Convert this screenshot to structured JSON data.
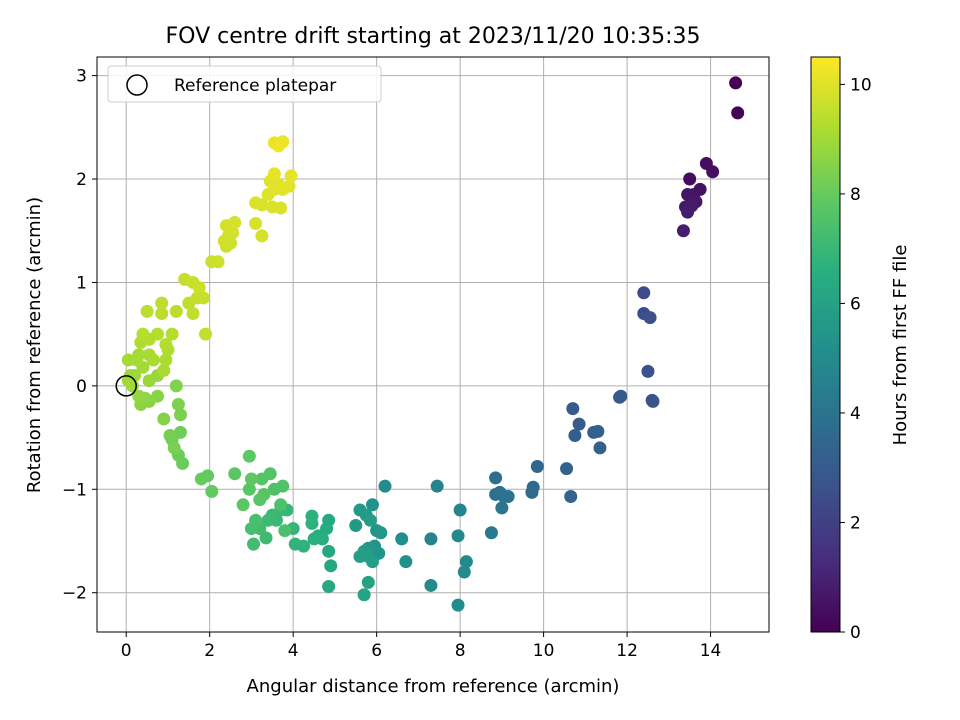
{
  "chart_data": {
    "type": "scatter",
    "title": "FOV centre drift starting at 2023/11/20 10:35:35",
    "xlabel": "Angular distance from reference (arcmin)",
    "ylabel": "Rotation from reference (arcmin)",
    "xlim": [
      -0.7,
      15.4
    ],
    "ylim": [
      -2.38,
      3.18
    ],
    "xticks": [
      0,
      2,
      4,
      6,
      8,
      10,
      12,
      14
    ],
    "yticks": [
      -2,
      -1,
      0,
      1,
      2,
      3
    ],
    "grid": true,
    "colormap": "viridis",
    "colorbar": {
      "label": "Hours from first FF file",
      "range": [
        0,
        10.5
      ],
      "ticks": [
        0,
        2,
        4,
        6,
        8,
        10
      ]
    },
    "legend": {
      "placement": "upper-left",
      "entries": [
        {
          "label": "Reference platepar",
          "marker": "open-circle"
        }
      ]
    },
    "reference_point": {
      "x": 0,
      "y": 0
    },
    "points": [
      [
        14.6,
        2.93,
        0.05
      ],
      [
        14.65,
        2.64,
        0.1
      ],
      [
        13.5,
        2.0,
        0.3
      ],
      [
        13.9,
        2.15,
        0.4
      ],
      [
        14.05,
        2.07,
        0.45
      ],
      [
        13.75,
        1.9,
        0.5
      ],
      [
        13.6,
        1.85,
        0.55
      ],
      [
        13.45,
        1.85,
        0.6
      ],
      [
        13.65,
        1.78,
        0.65
      ],
      [
        13.4,
        1.73,
        0.7
      ],
      [
        13.55,
        1.74,
        0.75
      ],
      [
        13.45,
        1.68,
        0.8
      ],
      [
        13.35,
        1.5,
        0.85
      ],
      [
        12.4,
        0.9,
        2.4
      ],
      [
        12.4,
        0.7,
        2.5
      ],
      [
        12.55,
        0.66,
        2.55
      ],
      [
        12.5,
        0.14,
        2.6
      ],
      [
        12.6,
        -0.14,
        2.7
      ],
      [
        12.62,
        -0.15,
        2.75
      ],
      [
        11.85,
        -0.1,
        2.9
      ],
      [
        11.82,
        -0.11,
        2.95
      ],
      [
        10.7,
        -0.22,
        3.0
      ],
      [
        10.85,
        -0.37,
        3.05
      ],
      [
        10.75,
        -0.48,
        3.1
      ],
      [
        11.2,
        -0.45,
        3.15
      ],
      [
        11.3,
        -0.44,
        3.2
      ],
      [
        11.35,
        -0.6,
        3.25
      ],
      [
        10.55,
        -0.8,
        3.3
      ],
      [
        10.65,
        -1.07,
        3.35
      ],
      [
        9.85,
        -0.78,
        3.5
      ],
      [
        9.75,
        -0.98,
        3.55
      ],
      [
        9.72,
        -1.03,
        3.6
      ],
      [
        8.85,
        -0.89,
        3.8
      ],
      [
        8.85,
        -1.05,
        3.85
      ],
      [
        8.95,
        -1.03,
        3.9
      ],
      [
        9.05,
        -1.07,
        3.95
      ],
      [
        9.15,
        -1.07,
        4.0
      ],
      [
        9.0,
        -1.18,
        4.05
      ],
      [
        8.75,
        -1.42,
        4.2
      ],
      [
        7.45,
        -0.97,
        4.6
      ],
      [
        7.3,
        -1.48,
        4.7
      ],
      [
        8.0,
        -1.2,
        4.8
      ],
      [
        7.95,
        -1.45,
        4.85
      ],
      [
        8.15,
        -1.7,
        4.9
      ],
      [
        8.1,
        -1.8,
        4.95
      ],
      [
        7.3,
        -1.93,
        5.0
      ],
      [
        7.95,
        -2.12,
        5.05
      ],
      [
        6.2,
        -0.97,
        5.1
      ],
      [
        6.6,
        -1.48,
        5.2
      ],
      [
        6.7,
        -1.7,
        5.25
      ],
      [
        5.9,
        -1.15,
        5.3
      ],
      [
        6.0,
        -1.4,
        5.35
      ],
      [
        5.95,
        -1.55,
        5.4
      ],
      [
        6.05,
        -1.62,
        5.45
      ],
      [
        6.1,
        -1.42,
        5.5
      ],
      [
        5.8,
        -1.57,
        5.55
      ],
      [
        5.6,
        -1.2,
        5.6
      ],
      [
        5.5,
        -1.35,
        5.65
      ],
      [
        5.75,
        -1.25,
        5.7
      ],
      [
        5.85,
        -1.3,
        5.75
      ],
      [
        5.8,
        -1.65,
        5.8
      ],
      [
        5.9,
        -1.7,
        5.85
      ],
      [
        5.7,
        -1.6,
        5.9
      ],
      [
        5.6,
        -1.65,
        5.95
      ],
      [
        5.8,
        -1.9,
        6.0
      ],
      [
        5.7,
        -2.02,
        6.05
      ],
      [
        4.85,
        -1.6,
        6.2
      ],
      [
        4.9,
        -1.74,
        6.25
      ],
      [
        4.85,
        -1.94,
        6.3
      ],
      [
        4.85,
        -1.3,
        6.4
      ],
      [
        4.8,
        -1.38,
        6.45
      ],
      [
        4.6,
        -1.45,
        6.5
      ],
      [
        4.7,
        -1.48,
        6.55
      ],
      [
        4.5,
        -1.48,
        6.6
      ],
      [
        4.45,
        -1.26,
        6.65
      ],
      [
        4.45,
        -1.33,
        6.7
      ],
      [
        4.25,
        -1.55,
        6.75
      ],
      [
        4.05,
        -1.53,
        6.8
      ],
      [
        4.0,
        -1.38,
        6.85
      ],
      [
        3.85,
        -1.2,
        6.9
      ],
      [
        3.7,
        -1.2,
        6.95
      ],
      [
        3.6,
        -1.3,
        7.0
      ],
      [
        3.5,
        -1.25,
        7.05
      ],
      [
        3.4,
        -1.3,
        7.1
      ],
      [
        3.35,
        -1.47,
        7.15
      ],
      [
        3.2,
        -1.38,
        7.2
      ],
      [
        3.05,
        -1.53,
        7.25
      ],
      [
        3.0,
        -1.38,
        7.3
      ],
      [
        3.1,
        -1.3,
        7.35
      ],
      [
        3.8,
        -1.4,
        7.4
      ],
      [
        3.7,
        -1.15,
        7.45
      ],
      [
        3.55,
        -1.0,
        7.5
      ],
      [
        3.75,
        -0.97,
        7.55
      ],
      [
        3.45,
        -0.85,
        7.6
      ],
      [
        3.25,
        -0.9,
        7.65
      ],
      [
        3.3,
        -1.05,
        7.7
      ],
      [
        3.2,
        -1.1,
        7.72
      ],
      [
        2.95,
        -1.0,
        7.75
      ],
      [
        2.8,
        -1.15,
        7.78
      ],
      [
        2.6,
        -0.85,
        7.8
      ],
      [
        2.95,
        -0.68,
        7.82
      ],
      [
        3.0,
        -0.9,
        7.85
      ],
      [
        2.05,
        -1.02,
        7.9
      ],
      [
        1.95,
        -0.87,
        7.95
      ],
      [
        1.8,
        -0.9,
        8.0
      ],
      [
        1.35,
        -0.75,
        8.05
      ],
      [
        1.25,
        -0.67,
        8.1
      ],
      [
        1.3,
        -0.45,
        8.15
      ],
      [
        1.1,
        -0.52,
        8.2
      ],
      [
        1.05,
        -0.48,
        8.25
      ],
      [
        1.15,
        -0.6,
        8.3
      ],
      [
        1.3,
        -0.28,
        8.35
      ],
      [
        1.25,
        -0.18,
        8.4
      ],
      [
        1.2,
        0.0,
        8.45
      ],
      [
        0.9,
        -0.32,
        8.5
      ],
      [
        0.75,
        -0.1,
        8.55
      ],
      [
        0.55,
        -0.15,
        8.6
      ],
      [
        0.35,
        -0.18,
        8.65
      ],
      [
        0.45,
        -0.12,
        8.7
      ],
      [
        0.3,
        -0.1,
        8.75
      ],
      [
        0.75,
        0.1,
        8.8
      ],
      [
        0.55,
        0.05,
        8.85
      ],
      [
        0.2,
        0.1,
        8.9
      ],
      [
        0.1,
        0.1,
        8.92
      ],
      [
        0.05,
        0.05,
        8.95
      ],
      [
        0.15,
        0.0,
        8.98
      ],
      [
        0.4,
        0.18,
        9.0
      ],
      [
        0.3,
        0.3,
        9.02
      ],
      [
        0.05,
        0.25,
        9.05
      ],
      [
        0.25,
        0.25,
        9.08
      ],
      [
        0.55,
        0.3,
        9.1
      ],
      [
        0.65,
        0.25,
        9.12
      ],
      [
        0.9,
        0.15,
        9.15
      ],
      [
        0.95,
        0.25,
        9.18
      ],
      [
        1.0,
        0.35,
        9.2
      ],
      [
        0.35,
        0.42,
        9.22
      ],
      [
        0.55,
        0.45,
        9.25
      ],
      [
        0.75,
        0.5,
        9.28
      ],
      [
        1.1,
        0.5,
        9.3
      ],
      [
        0.95,
        0.4,
        9.32
      ],
      [
        0.4,
        0.5,
        9.35
      ],
      [
        0.5,
        0.72,
        9.38
      ],
      [
        0.85,
        0.7,
        9.4
      ],
      [
        1.2,
        0.72,
        9.42
      ],
      [
        0.85,
        0.8,
        9.45
      ],
      [
        1.6,
        0.7,
        9.48
      ],
      [
        1.5,
        0.8,
        9.5
      ],
      [
        1.9,
        0.5,
        9.52
      ],
      [
        1.7,
        0.85,
        9.55
      ],
      [
        1.85,
        0.85,
        9.58
      ],
      [
        1.4,
        1.03,
        9.6
      ],
      [
        1.6,
        1.0,
        9.62
      ],
      [
        1.75,
        0.95,
        9.65
      ],
      [
        2.05,
        1.2,
        9.68
      ],
      [
        2.2,
        1.2,
        9.7
      ],
      [
        2.4,
        1.35,
        9.72
      ],
      [
        2.5,
        1.38,
        9.74
      ],
      [
        2.35,
        1.4,
        9.76
      ],
      [
        2.45,
        1.45,
        9.78
      ],
      [
        2.55,
        1.48,
        9.8
      ],
      [
        2.4,
        1.55,
        9.82
      ],
      [
        2.6,
        1.58,
        9.84
      ],
      [
        3.25,
        1.45,
        9.86
      ],
      [
        3.1,
        1.57,
        9.88
      ],
      [
        3.25,
        1.75,
        9.9
      ],
      [
        3.1,
        1.77,
        9.92
      ],
      [
        3.5,
        1.73,
        9.94
      ],
      [
        3.7,
        1.72,
        9.96
      ],
      [
        3.4,
        1.85,
        9.98
      ],
      [
        3.55,
        1.9,
        10.0
      ],
      [
        3.75,
        1.9,
        10.02
      ],
      [
        3.9,
        1.93,
        10.04
      ],
      [
        3.45,
        1.98,
        10.06
      ],
      [
        3.65,
        1.95,
        10.08
      ],
      [
        3.55,
        2.05,
        10.1
      ],
      [
        3.95,
        2.03,
        10.12
      ],
      [
        3.55,
        2.35,
        10.15
      ],
      [
        3.75,
        2.36,
        10.2
      ],
      [
        3.65,
        2.32,
        10.25
      ]
    ]
  }
}
